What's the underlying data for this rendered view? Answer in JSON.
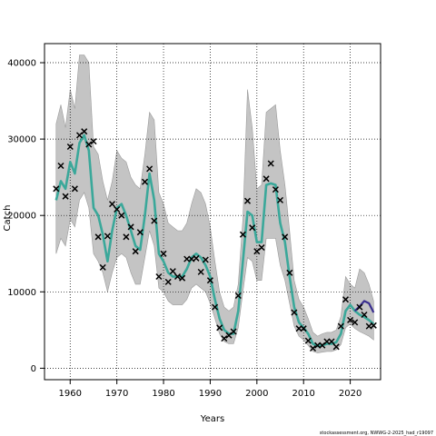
{
  "chart_data": {
    "type": "line",
    "xlabel": "Years",
    "ylabel": "Catch",
    "xlim": [
      1954.5,
      2026.5
    ],
    "ylim": [
      -1500,
      42500
    ],
    "xticks": [
      1960,
      1970,
      1980,
      1990,
      2000,
      2010,
      2020
    ],
    "yticks": [
      0,
      10000,
      20000,
      30000,
      40000
    ],
    "grid": true,
    "colors": {
      "band": "#c4c4c4",
      "band_edge": "#9a9a9a",
      "fit": "#3aa89a",
      "projection": "#3a2f8f",
      "marker": "#000000",
      "grid": "#000000"
    },
    "years": [
      1957,
      1958,
      1959,
      1960,
      1961,
      1962,
      1963,
      1964,
      1965,
      1966,
      1967,
      1968,
      1969,
      1970,
      1971,
      1972,
      1973,
      1974,
      1975,
      1976,
      1977,
      1978,
      1979,
      1980,
      1981,
      1982,
      1983,
      1984,
      1985,
      1986,
      1987,
      1988,
      1989,
      1990,
      1991,
      1992,
      1993,
      1994,
      1995,
      1996,
      1997,
      1998,
      1999,
      2000,
      2001,
      2002,
      2003,
      2004,
      2005,
      2006,
      2007,
      2008,
      2009,
      2010,
      2011,
      2012,
      2013,
      2014,
      2015,
      2016,
      2017,
      2018,
      2019,
      2020,
      2021,
      2022,
      2023,
      2024,
      2025
    ],
    "observed": [
      23500,
      26500,
      22500,
      29000,
      23500,
      30500,
      31000,
      29300,
      29700,
      17200,
      13200,
      17300,
      21500,
      20800,
      20000,
      17200,
      18500,
      15300,
      17800,
      24400,
      26100,
      19300,
      12000,
      15000,
      11300,
      12700,
      12000,
      11800,
      14300,
      14300,
      14400,
      12600,
      14200,
      11500,
      8000,
      5300,
      3900,
      4300,
      4800,
      9500,
      17500,
      21900,
      18400,
      15300,
      15800,
      24800,
      26800,
      23400,
      22000,
      17200,
      12500,
      7300,
      5200,
      5200,
      3600,
      2600,
      3000,
      3000,
      3500,
      3500,
      2800,
      5500,
      9000,
      6300,
      6000,
      8000,
      7000,
      5500,
      5600
    ],
    "fitted": [
      22000,
      24500,
      23500,
      27000,
      25500,
      29500,
      30500,
      28500,
      21000,
      20000,
      17500,
      14000,
      18000,
      21000,
      21500,
      20000,
      18000,
      16000,
      15500,
      20000,
      25500,
      22000,
      15000,
      14000,
      12500,
      12000,
      12000,
      12000,
      13000,
      14500,
      15000,
      14500,
      13500,
      12000,
      9000,
      6500,
      5000,
      4500,
      4500,
      7500,
      14000,
      20500,
      20000,
      16500,
      16500,
      24000,
      24200,
      24000,
      19000,
      16500,
      12000,
      8000,
      6000,
      5300,
      4500,
      3200,
      2900,
      3000,
      3200,
      3200,
      3400,
      4500,
      7500,
      8300,
      7500,
      7000,
      6700,
      6300,
      5800
    ],
    "band_upper": [
      32000,
      34500,
      31500,
      36500,
      34000,
      41000,
      41000,
      40000,
      29000,
      28000,
      24500,
      22000,
      24500,
      28500,
      27500,
      27000,
      25000,
      24000,
      23500,
      28000,
      33500,
      32500,
      23000,
      21500,
      19000,
      18500,
      18000,
      18000,
      19000,
      21500,
      23500,
      23000,
      21500,
      18500,
      14000,
      10000,
      8000,
      7500,
      8000,
      11000,
      19500,
      36500,
      31500,
      23500,
      24000,
      33500,
      34000,
      34500,
      28500,
      24000,
      18000,
      11500,
      9000,
      8000,
      6500,
      4700,
      4200,
      4500,
      4700,
      4700,
      5000,
      6800,
      12000,
      11000,
      10500,
      13000,
      12500,
      11000,
      8800
    ],
    "band_lower": [
      15000,
      17000,
      16000,
      19500,
      18500,
      22000,
      23000,
      21000,
      15000,
      14000,
      12500,
      10000,
      12500,
      14500,
      15000,
      14500,
      12500,
      11000,
      11000,
      14500,
      18000,
      16000,
      10500,
      10000,
      8800,
      8300,
      8300,
      8300,
      9000,
      10500,
      11000,
      10500,
      10000,
      8500,
      6500,
      4500,
      3500,
      3200,
      3200,
      5300,
      10000,
      14500,
      14000,
      11500,
      11500,
      17000,
      17000,
      17000,
      13500,
      11500,
      8500,
      5500,
      4200,
      3700,
      3000,
      2200,
      2000,
      2100,
      2200,
      2200,
      2400,
      3100,
      5300,
      5800,
      5200,
      4800,
      4500,
      4200,
      3700
    ],
    "projection": {
      "years": [
        2021,
        2022,
        2023,
        2024,
        2025
      ],
      "values": [
        7500,
        8100,
        8800,
        8500,
        7300
      ]
    }
  },
  "credit": "stockassessment.org, NWWG-2-2025_had_r19097"
}
